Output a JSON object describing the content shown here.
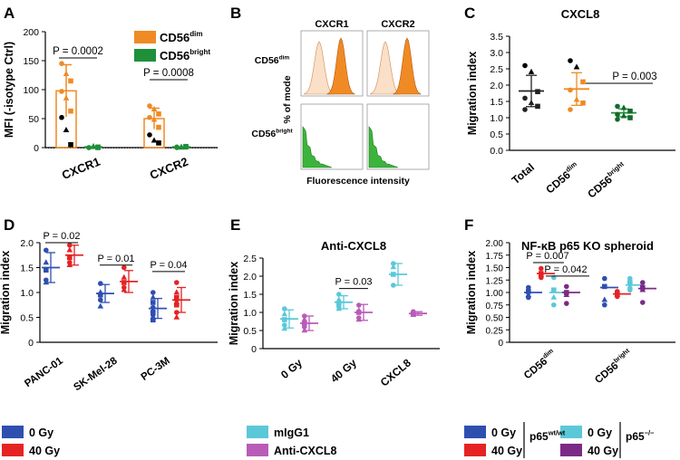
{
  "figure": {
    "panel_letters": [
      "A",
      "B",
      "C",
      "D",
      "E",
      "F"
    ],
    "colors": {
      "cd56dim": "#f08a24",
      "cd56bright": "#1f8f3a",
      "gy0": "#2f4fb0",
      "gy40": "#e52323",
      "migg1": "#5bc8d8",
      "anticxcl8": "#b85cb8",
      "ko0": "#5bc8d8",
      "ko40": "#7b2b86",
      "flow_dim_light": "#f6c79a",
      "flow_bright": "#3cb43c"
    }
  },
  "chart_data": [
    {
      "panel": "A",
      "type": "bar",
      "error_bars": "sd",
      "individual_points": true,
      "title": "",
      "ylabel": "MFI (-isotype Ctrl)",
      "ylim": [
        0,
        200
      ],
      "yticks": [
        "0",
        "50",
        "100",
        "150",
        "200"
      ],
      "categories": [
        "CXCR1",
        "CXCR2"
      ],
      "series": [
        {
          "name": "CD56",
          "sup": "dim",
          "color_key": "cd56dim",
          "values": [
            98,
            50
          ],
          "sd": [
            45,
            18
          ],
          "points": [
            [
              145,
              127,
              115,
              97,
              85,
              63,
              52,
              30,
              5
            ],
            [
              72,
              66,
              58,
              52,
              48,
              35,
              22,
              12,
              8
            ]
          ]
        },
        {
          "name": "CD56",
          "sup": "bright",
          "color_key": "cd56bright",
          "values": [
            1,
            1
          ],
          "sd": [
            1,
            1
          ],
          "points": [
            [
              0,
              1,
              1,
              0,
              2,
              0
            ],
            [
              0,
              1,
              2,
              1,
              0,
              1
            ]
          ]
        }
      ],
      "annotations": [
        {
          "text": "P = 0.0002"
        },
        {
          "text": "P = 0.0008"
        }
      ]
    },
    {
      "panel": "B",
      "type": "histogram",
      "columns": [
        "CXCR1",
        "CXCR2"
      ],
      "rows": [
        {
          "name": "CD56",
          "sup": "dim"
        },
        {
          "name": "CD56",
          "sup": "bright"
        }
      ],
      "xlabel": "Fluorescence intensity",
      "ylabel": "% of mode"
    },
    {
      "panel": "C",
      "type": "scatter",
      "error_bars": "sd",
      "title": "CXCL8",
      "ylabel": "Migration index",
      "ylim": [
        0,
        3.5
      ],
      "yticks": [
        "0.0",
        "0.5",
        "1.0",
        "1.5",
        "2.0",
        "2.5",
        "3.0",
        "3.5"
      ],
      "categories": [
        {
          "name": "Total",
          "sup": ""
        },
        {
          "name": "CD56",
          "sup": "dim"
        },
        {
          "name": "CD56",
          "sup": "bright"
        }
      ],
      "groups": [
        {
          "mean": 1.82,
          "sd": 0.48,
          "points": [
            2.6,
            2.4,
            1.8,
            1.6,
            1.45,
            1.35,
            1.25
          ]
        },
        {
          "mean": 1.88,
          "sd": 0.5,
          "points": [
            2.75,
            2.55,
            2.1,
            1.85,
            1.55,
            1.45,
            1.25
          ]
        },
        {
          "mean": 1.15,
          "sd": 0.12,
          "points": [
            1.35,
            1.3,
            1.2,
            1.1,
            1.05,
            1.0,
            0.95
          ]
        }
      ],
      "annotations": [
        {
          "text": "P = 0.003"
        }
      ]
    },
    {
      "panel": "D",
      "type": "scatter",
      "error_bars": "sd",
      "ylabel": "Migration index",
      "ylim": [
        0,
        2.0
      ],
      "yticks": [
        "0",
        "0.5",
        "1.0",
        "1.5",
        "2.0"
      ],
      "categories": [
        "PANC-01",
        "SK-Mel-28",
        "PC-3M"
      ],
      "series": [
        {
          "name": "0 Gy",
          "color_key": "gy0",
          "means": [
            1.5,
            0.98,
            0.68
          ],
          "sd": [
            0.3,
            0.18,
            0.2
          ],
          "points": [
            [
              1.85,
              1.6,
              1.45,
              1.25,
              1.2
            ],
            [
              1.18,
              1.0,
              0.95,
              0.85,
              0.72
            ],
            [
              1.0,
              0.9,
              0.8,
              0.7,
              0.65,
              0.6,
              0.55,
              0.5,
              0.45
            ]
          ]
        },
        {
          "name": "40 Gy",
          "color_key": "gy40",
          "means": [
            1.75,
            1.22,
            0.85
          ],
          "sd": [
            0.2,
            0.22,
            0.25
          ],
          "points": [
            [
              1.95,
              1.85,
              1.7,
              1.6,
              1.55
            ],
            [
              1.5,
              1.3,
              1.2,
              1.1,
              1.05
            ],
            [
              1.2,
              1.0,
              0.9,
              0.85,
              0.8,
              0.75,
              0.6,
              0.5
            ]
          ]
        }
      ],
      "annotations": [
        {
          "text": "P = 0.02"
        },
        {
          "text": "P = 0.01"
        },
        {
          "text": "P = 0.04"
        }
      ]
    },
    {
      "panel": "E",
      "type": "scatter",
      "error_bars": "sd",
      "title": "Anti-CXCL8",
      "ylabel": "Migration index",
      "ylim": [
        0,
        2.5
      ],
      "yticks": [
        "0",
        "0.5",
        "1.0",
        "1.5",
        "2.0",
        "2.5"
      ],
      "categories": [
        "0 Gy",
        "40 Gy",
        "CXCL8"
      ],
      "series": [
        {
          "name": "mIgG1",
          "color_key": "migg1",
          "means": [
            0.82,
            1.28,
            2.05
          ],
          "sd": [
            0.25,
            0.18,
            0.3
          ],
          "points": [
            [
              1.1,
              0.95,
              0.8,
              0.65,
              0.55
            ],
            [
              1.5,
              1.35,
              1.25,
              1.15,
              1.1
            ],
            [
              2.35,
              2.25,
              2.05,
              1.75
            ]
          ]
        },
        {
          "name": "Anti-CXCL8",
          "color_key": "anticxcl8",
          "means": [
            0.7,
            1.0,
            0.97
          ],
          "sd": [
            0.2,
            0.22,
            0.05
          ],
          "points": [
            [
              0.9,
              0.8,
              0.7,
              0.6,
              0.5
            ],
            [
              1.2,
              1.05,
              1.0,
              0.85,
              0.8
            ],
            [
              1.02,
              1.0,
              0.97,
              0.95,
              0.93
            ]
          ]
        }
      ],
      "annotations": [
        {
          "text": "P = 0.03"
        }
      ]
    },
    {
      "panel": "F",
      "type": "scatter",
      "title": "NF-κB p65 KO spheroid",
      "ylabel": "Migration index",
      "ylim": [
        0,
        2.0
      ],
      "yticks": [
        "0",
        "0.25",
        "0.50",
        "0.75",
        "1.00",
        "1.25",
        "1.50",
        "1.75",
        "2.00"
      ],
      "categories": [
        {
          "name": "CD56",
          "sup": "dim"
        },
        {
          "name": "CD56",
          "sup": "bright"
        }
      ],
      "series": [
        {
          "name": "0 Gy p65 wt/wt",
          "color_key": "gy0",
          "means": [
            1.0,
            1.1
          ],
          "points": [
            [
              1.1,
              1.02,
              0.95,
              0.9
            ],
            [
              1.28,
              1.12,
              0.85,
              0.75
            ]
          ]
        },
        {
          "name": "40 Gy p65 wt/wt",
          "color_key": "gy40",
          "means": [
            1.38,
            0.97
          ],
          "points": [
            [
              1.48,
              1.38,
              1.35,
              1.3
            ],
            [
              1.02,
              0.98,
              0.96,
              0.92
            ]
          ]
        },
        {
          "name": "0 Gy p65 -/-",
          "color_key": "ko0",
          "means": [
            1.0,
            1.15
          ],
          "points": [
            [
              1.3,
              1.05,
              0.9,
              0.75
            ],
            [
              1.28,
              1.2,
              1.12,
              1.05
            ]
          ]
        },
        {
          "name": "40 Gy p65 -/-",
          "color_key": "ko40",
          "means": [
            1.0,
            1.08
          ],
          "points": [
            [
              1.12,
              1.0,
              0.95,
              0.78
            ],
            [
              1.2,
              1.1,
              1.05,
              0.8
            ]
          ]
        }
      ],
      "annotations": [
        {
          "text": "P = 0.007"
        },
        {
          "text": "P = 0.042"
        }
      ]
    }
  ],
  "legends": {
    "A": [
      {
        "name": "CD56",
        "sup": "dim",
        "color_key": "cd56dim"
      },
      {
        "name": "CD56",
        "sup": "bright",
        "color_key": "cd56bright"
      }
    ],
    "D": [
      {
        "label": "0 Gy",
        "color_key": "gy0"
      },
      {
        "label": "40 Gy",
        "color_key": "gy40"
      }
    ],
    "E": [
      {
        "label": "mIgG1",
        "color_key": "migg1"
      },
      {
        "label": "Anti-CXCL8",
        "color_key": "anticxcl8"
      }
    ],
    "F": {
      "items": [
        {
          "label": "0 Gy",
          "color_key": "gy0"
        },
        {
          "label": "40 Gy",
          "color_key": "gy40"
        },
        {
          "label": "0 Gy",
          "color_key": "ko0"
        },
        {
          "label": "40 Gy",
          "color_key": "ko40"
        }
      ],
      "groups": [
        {
          "name": "p65",
          "sup": "wt/wt"
        },
        {
          "name": "p65",
          "sup": "−/−"
        }
      ]
    }
  }
}
